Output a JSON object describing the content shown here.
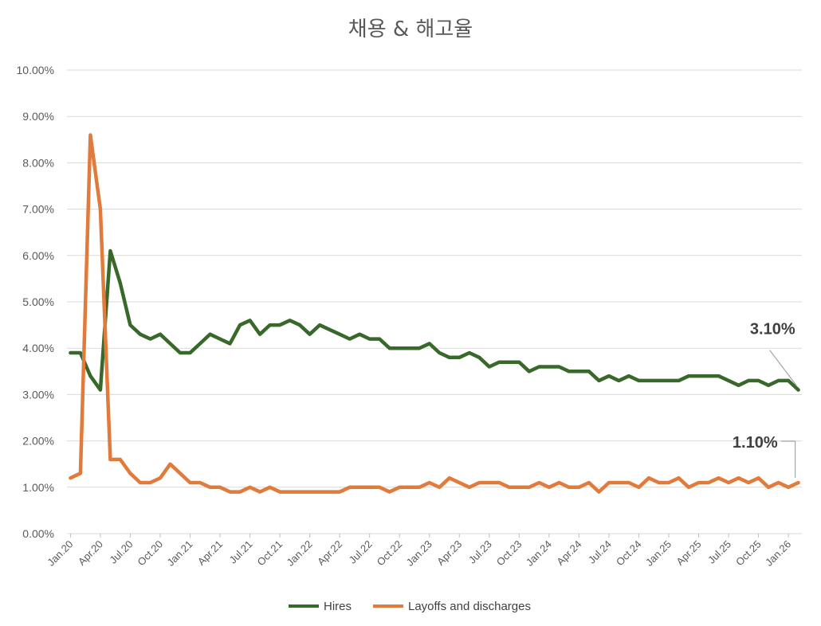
{
  "chart_data": {
    "type": "line",
    "title": "채용 & 해고율",
    "xlabel": "",
    "ylabel": "",
    "ylim": [
      0,
      10
    ],
    "y_unit": "%",
    "y_ticks": [
      "0.00%",
      "1.00%",
      "2.00%",
      "3.00%",
      "4.00%",
      "5.00%",
      "6.00%",
      "7.00%",
      "8.00%",
      "9.00%",
      "10.00%"
    ],
    "x_tick_labels": [
      "Jan.20",
      "Apr.20",
      "Jul.20",
      "Oct.20",
      "Jan.21",
      "Apr.21",
      "Jul.21",
      "Oct.21",
      "Jan.22",
      "Apr.22",
      "Jul.22",
      "Oct.22",
      "Jan.23",
      "Apr.23",
      "Jul.23",
      "Oct.23",
      "Jan.24",
      "Apr.24",
      "Jul.24",
      "Oct.24",
      "Jan.25",
      "Apr.25",
      "Jul.25",
      "Oct.25",
      "Jan.26"
    ],
    "x_start": "Jan.20",
    "x_end": "Feb.26",
    "grid": true,
    "legend_position": "bottom",
    "series": [
      {
        "name": "Hires",
        "color": "#38692a",
        "values": [
          3.9,
          3.9,
          3.4,
          3.1,
          6.1,
          5.4,
          4.5,
          4.3,
          4.2,
          4.3,
          4.1,
          3.9,
          3.9,
          4.1,
          4.3,
          4.2,
          4.1,
          4.5,
          4.6,
          4.3,
          4.5,
          4.5,
          4.6,
          4.5,
          4.3,
          4.5,
          4.4,
          4.3,
          4.2,
          4.3,
          4.2,
          4.2,
          4.0,
          4.0,
          4.0,
          4.0,
          4.1,
          3.9,
          3.8,
          3.8,
          3.9,
          3.8,
          3.6,
          3.7,
          3.7,
          3.7,
          3.5,
          3.6,
          3.6,
          3.6,
          3.5,
          3.5,
          3.5,
          3.3,
          3.4,
          3.3,
          3.4,
          3.3,
          3.3,
          3.3,
          3.3,
          3.3,
          3.4,
          3.4,
          3.4,
          3.4,
          3.3,
          3.2,
          3.3,
          3.3,
          3.2,
          3.3,
          3.3,
          3.1
        ]
      },
      {
        "name": "Layoffs and discharges",
        "color": "#e07b3c",
        "values": [
          1.2,
          1.3,
          8.6,
          7.0,
          1.6,
          1.6,
          1.3,
          1.1,
          1.1,
          1.2,
          1.5,
          1.3,
          1.1,
          1.1,
          1.0,
          1.0,
          0.9,
          0.9,
          1.0,
          0.9,
          1.0,
          0.9,
          0.9,
          0.9,
          0.9,
          0.9,
          0.9,
          0.9,
          1.0,
          1.0,
          1.0,
          1.0,
          0.9,
          1.0,
          1.0,
          1.0,
          1.1,
          1.0,
          1.2,
          1.1,
          1.0,
          1.1,
          1.1,
          1.1,
          1.0,
          1.0,
          1.0,
          1.1,
          1.0,
          1.1,
          1.0,
          1.0,
          1.1,
          0.9,
          1.1,
          1.1,
          1.1,
          1.0,
          1.2,
          1.1,
          1.1,
          1.2,
          1.0,
          1.1,
          1.1,
          1.2,
          1.1,
          1.2,
          1.1,
          1.2,
          1.0,
          1.1,
          1.0,
          1.1
        ]
      }
    ],
    "annotations": [
      {
        "series": "Hires",
        "text": "3.10%"
      },
      {
        "series": "Layoffs and discharges",
        "text": "1.10%"
      }
    ]
  }
}
